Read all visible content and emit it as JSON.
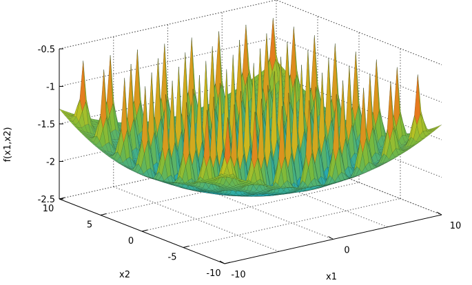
{
  "chart_data": {
    "type": "surface3d",
    "title": "",
    "xlabel": "x1",
    "ylabel": "x2",
    "zlabel": "f(x1,x2)",
    "xlim": [
      -10,
      10
    ],
    "ylim": [
      -10,
      10
    ],
    "zlim": [
      -2.5,
      -0.5
    ],
    "grid": true,
    "colormap": "jet",
    "x_ticks": [
      {
        "value": -10,
        "label": "-10"
      },
      {
        "value": 0,
        "label": "0"
      },
      {
        "value": 10,
        "label": "10"
      }
    ],
    "y_ticks": [
      {
        "value": 10,
        "label": "10"
      },
      {
        "value": 5,
        "label": "5"
      },
      {
        "value": 0,
        "label": "0"
      },
      {
        "value": -5,
        "label": "-5"
      },
      {
        "value": -10,
        "label": "-10"
      }
    ],
    "z_ticks": [
      {
        "value": -0.5,
        "label": "-0.5"
      },
      {
        "value": -1,
        "label": "-1"
      },
      {
        "value": -1.5,
        "label": "-1.5"
      },
      {
        "value": -2,
        "label": "-2"
      },
      {
        "value": -2.5,
        "label": "-2.5"
      }
    ],
    "surface": {
      "description": "bowl-shaped surface covered with a regular grid of sharp peaks",
      "center_value": -2.2,
      "edge_value": -1.3,
      "peak_height": -0.6,
      "peak_spacing": 2.5
    }
  }
}
